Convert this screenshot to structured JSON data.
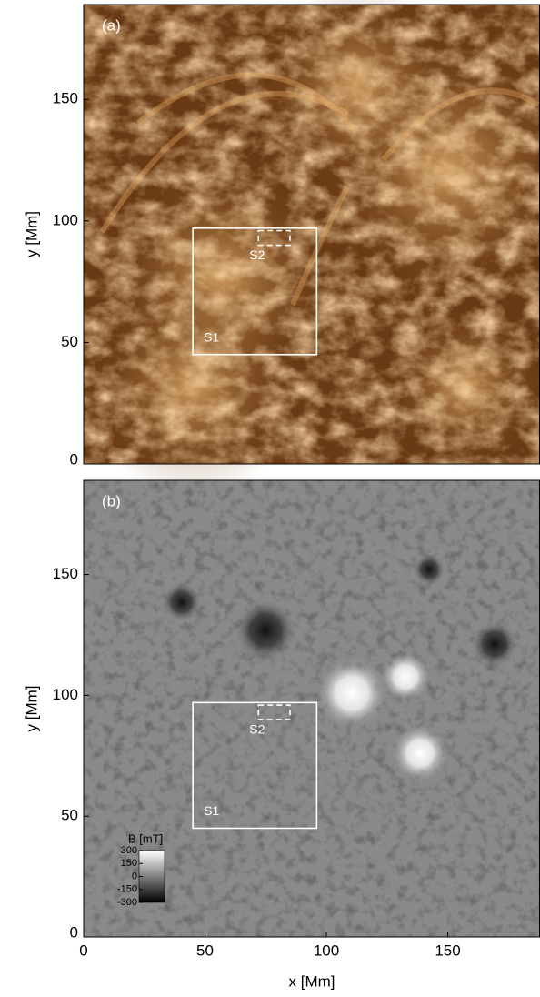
{
  "chart_data": [
    {
      "type": "image",
      "panel_label": "(a)",
      "ylabel": "y [Mm]",
      "xlim": [
        0,
        188
      ],
      "ylim": [
        0,
        189
      ],
      "yticks": [
        0,
        50,
        100,
        150
      ],
      "regions": [
        {
          "label": "S1",
          "x": [
            45,
            96
          ],
          "y": [
            45,
            97
          ],
          "style": "solid"
        },
        {
          "label": "S2",
          "x": [
            72,
            85
          ],
          "y": [
            90,
            96
          ],
          "style": "dashed"
        }
      ]
    },
    {
      "type": "image",
      "panel_label": "(b)",
      "ylabel": "y [Mm]",
      "xlabel": "x [Mm]",
      "xlim": [
        0,
        188
      ],
      "ylim": [
        0,
        189
      ],
      "xticks": [
        0,
        50,
        100,
        150
      ],
      "yticks": [
        0,
        50,
        100,
        150
      ],
      "regions": [
        {
          "label": "S1",
          "x": [
            45,
            96
          ],
          "y": [
            45,
            97
          ],
          "style": "solid"
        },
        {
          "label": "S2",
          "x": [
            72,
            85
          ],
          "y": [
            90,
            96
          ],
          "style": "dashed"
        }
      ],
      "colorbar": {
        "label": "B [mT]",
        "lim": [
          -300,
          300
        ],
        "ticks": [
          300,
          150,
          0,
          -150,
          -300
        ]
      }
    }
  ]
}
